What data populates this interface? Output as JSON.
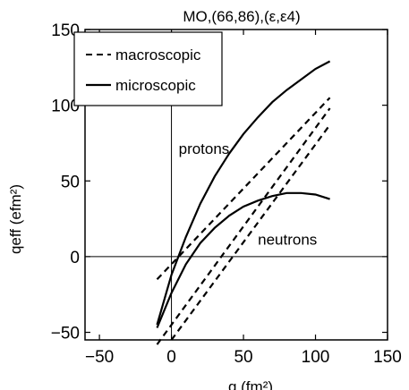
{
  "chart_data": {
    "type": "line",
    "title": "MO,(66,86),(ε,ε4)",
    "xlabel": "q (fm²)",
    "ylabel": "qeff (efm²)",
    "xlim": [
      -60,
      150
    ],
    "ylim": [
      -55,
      150
    ],
    "xticks": [
      -50,
      0,
      50,
      100,
      150
    ],
    "yticks": [
      -50,
      0,
      50,
      100,
      150
    ],
    "grid": false,
    "legend_position": "top-left",
    "legend": [
      {
        "label": "macroscopic",
        "style": "dashed"
      },
      {
        "label": "microscopic",
        "style": "solid"
      }
    ],
    "annotations": [
      {
        "text": "protons",
        "x": 5,
        "y": 68
      },
      {
        "text": "neutrons",
        "x": 60,
        "y": 8
      }
    ],
    "series": [
      {
        "group": "protons",
        "style": "solid",
        "x": [
          -10,
          0,
          10,
          20,
          30,
          40,
          50,
          60,
          70,
          80,
          90,
          100,
          110
        ],
        "y": [
          -45,
          -12,
          13,
          35,
          53,
          68,
          81,
          92,
          102,
          110,
          117,
          124,
          129
        ]
      },
      {
        "group": "protons",
        "style": "dashed",
        "x": [
          -10,
          110
        ],
        "y": [
          -15,
          105
        ]
      },
      {
        "group": "neutrons",
        "style": "solid",
        "x": [
          -10,
          0,
          10,
          20,
          30,
          40,
          50,
          60,
          70,
          80,
          90,
          100,
          110
        ],
        "y": [
          -47,
          -24,
          -5,
          9,
          19,
          27,
          33,
          37,
          40,
          42,
          42,
          41,
          38
        ]
      },
      {
        "group": "neutrons",
        "style": "dashed",
        "x": [
          -10,
          110
        ],
        "y": [
          -58,
          98
        ]
      },
      {
        "group": "neutrons",
        "style": "dashed",
        "x": [
          0,
          110
        ],
        "y": [
          -55,
          87
        ]
      }
    ]
  }
}
